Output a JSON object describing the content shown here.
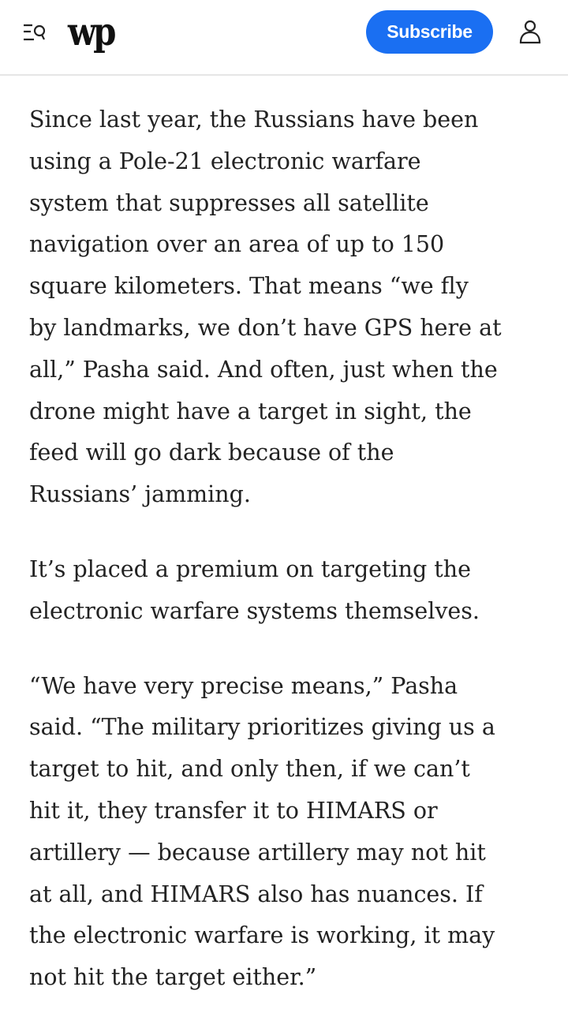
{
  "header": {
    "logo_text": "wp",
    "subscribe_label": "Subscribe",
    "accent_color": "#1a6ff2",
    "icons": {
      "menu": "menu-search-icon",
      "account": "user-icon"
    }
  },
  "article": {
    "paragraphs": [
      [
        "Since last year, the Russians have been",
        "using a Pole-21 electronic warfare",
        "system that suppresses all satellite",
        "navigation over an area of up to 150",
        "square kilometers. That means “we fly",
        "by landmarks, we don’t have GPS here at",
        "all,” Pasha said. And often, just when the",
        "drone might have a target in sight, the",
        "feed will go dark because of the",
        "Russians’ jamming."
      ],
      [
        "It’s placed a premium on targeting the",
        "electronic warfare systems themselves."
      ],
      [
        "“We have very precise means,” Pasha",
        "said. “The military prioritizes giving us a",
        "target to hit, and only then, if we can’t",
        "hit it, they transfer it to HIMARS or",
        "artillery — because artillery may not hit",
        "at all, and HIMARS also has nuances. If",
        "the electronic warfare is working, it may",
        "not hit the target either.”"
      ]
    ]
  }
}
